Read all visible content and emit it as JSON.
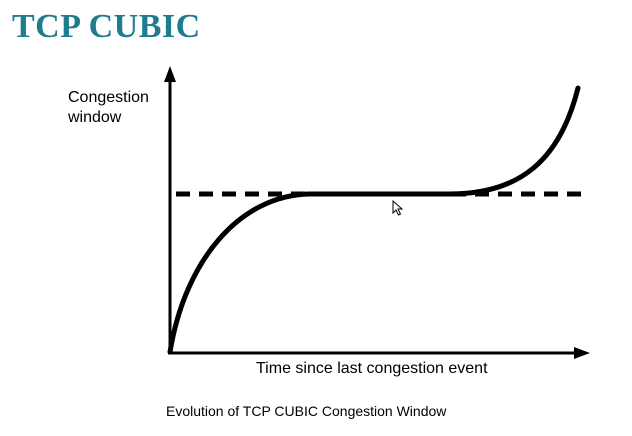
{
  "slide": {
    "title": "TCP CUBIC"
  },
  "diagram": {
    "y_axis_label": "Congestion\nwindow",
    "x_axis_label": "Time since last congestion event",
    "caption": "Evolution of TCP CUBIC Congestion Window",
    "curve_color": "#000000",
    "title_color": "#1f7c8f"
  }
}
